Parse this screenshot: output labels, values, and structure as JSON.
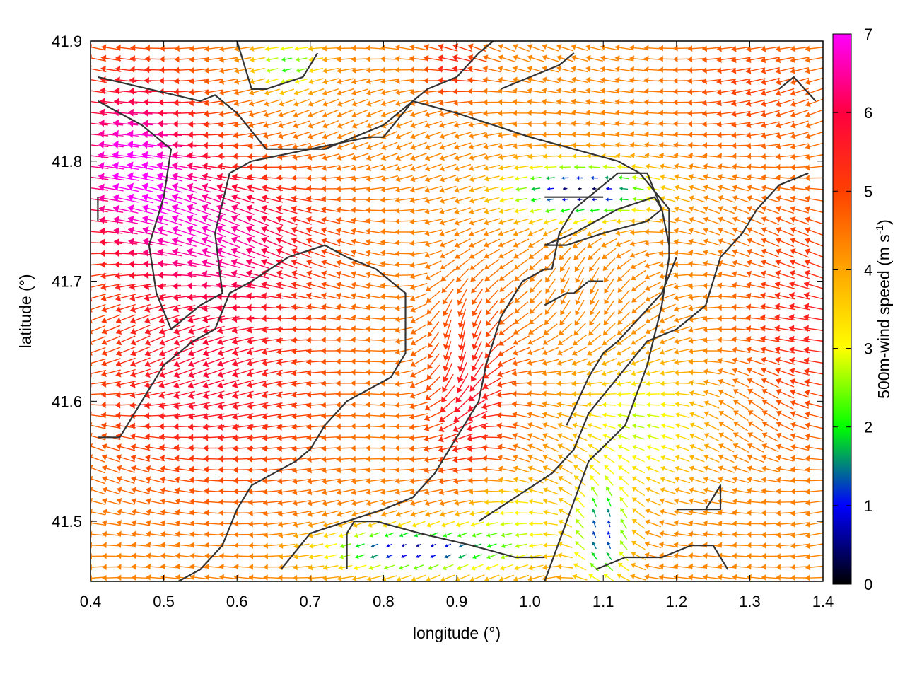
{
  "chart_data": {
    "type": "vector-field",
    "xlabel": "longitude (°)",
    "ylabel": "latitude (°)",
    "colorbar_label": "500m-wind speed (m s",
    "colorbar_label_sup": "-1",
    "colorbar_label_close": ")",
    "xlim": [
      0.4,
      1.4
    ],
    "ylim": [
      41.45,
      41.9
    ],
    "x_ticks": [
      {
        "v": 0.4,
        "label": "0.4"
      },
      {
        "v": 0.5,
        "label": "0.5"
      },
      {
        "v": 0.6,
        "label": "0.6"
      },
      {
        "v": 0.7,
        "label": "0.7"
      },
      {
        "v": 0.8,
        "label": "0.8"
      },
      {
        "v": 0.9,
        "label": "0.9"
      },
      {
        "v": 1.0,
        "label": "1.0"
      },
      {
        "v": 1.1,
        "label": "1.1"
      },
      {
        "v": 1.2,
        "label": "1.2"
      },
      {
        "v": 1.3,
        "label": "1.3"
      },
      {
        "v": 1.4,
        "label": "1.4"
      }
    ],
    "y_ticks": [
      {
        "v": 41.5,
        "label": "41.5"
      },
      {
        "v": 41.6,
        "label": "41.6"
      },
      {
        "v": 41.7,
        "label": "41.7"
      },
      {
        "v": 41.8,
        "label": "41.8"
      },
      {
        "v": 41.9,
        "label": "41.9"
      }
    ],
    "colorbar": {
      "range": [
        0,
        7
      ],
      "ticks": [
        {
          "v": 0,
          "label": "0"
        },
        {
          "v": 1,
          "label": "1"
        },
        {
          "v": 2,
          "label": "2"
        },
        {
          "v": 3,
          "label": "3"
        },
        {
          "v": 4,
          "label": "4"
        },
        {
          "v": 5,
          "label": "5"
        },
        {
          "v": 6,
          "label": "6"
        },
        {
          "v": 7,
          "label": "7"
        }
      ],
      "stops": [
        {
          "v": 0,
          "color": "#000000"
        },
        {
          "v": 1,
          "color": "#0000ff"
        },
        {
          "v": 2,
          "color": "#00ff00"
        },
        {
          "v": 3,
          "color": "#ffff00"
        },
        {
          "v": 4,
          "color": "#ffa500"
        },
        {
          "v": 5,
          "color": "#ff4000"
        },
        {
          "v": 6,
          "color": "#ff0040"
        },
        {
          "v": 7,
          "color": "#ff00ff"
        }
      ]
    },
    "contour_color": "#333333",
    "contours": [
      [
        [
          0.41,
          41.87
        ],
        [
          0.48,
          41.86
        ],
        [
          0.55,
          41.85
        ],
        [
          0.57,
          41.855
        ],
        [
          0.6,
          41.84
        ],
        [
          0.64,
          41.81
        ],
        [
          0.67,
          41.81
        ],
        [
          0.72,
          41.81
        ],
        [
          0.8,
          41.83
        ],
        [
          0.86,
          41.86
        ],
        [
          0.9,
          41.87
        ],
        [
          0.93,
          41.89
        ],
        [
          0.95,
          41.9
        ]
      ],
      [
        [
          0.41,
          41.85
        ],
        [
          0.44,
          41.84
        ],
        [
          0.47,
          41.83
        ],
        [
          0.51,
          41.81
        ],
        [
          0.5,
          41.77
        ],
        [
          0.48,
          41.73
        ],
        [
          0.49,
          41.69
        ],
        [
          0.51,
          41.66
        ],
        [
          0.55,
          41.68
        ],
        [
          0.58,
          41.69
        ],
        [
          0.57,
          41.74
        ],
        [
          0.59,
          41.79
        ],
        [
          0.62,
          41.8
        ],
        [
          0.7,
          41.81
        ],
        [
          0.78,
          41.82
        ],
        [
          0.8,
          41.82
        ],
        [
          0.84,
          41.85
        ],
        [
          0.9,
          41.84
        ],
        [
          0.95,
          41.83
        ],
        [
          1.0,
          41.82
        ],
        [
          1.06,
          41.81
        ],
        [
          1.12,
          41.8
        ],
        [
          1.15,
          41.79
        ],
        [
          1.19,
          41.76
        ],
        [
          1.19,
          41.72
        ],
        [
          1.18,
          41.68
        ],
        [
          1.16,
          41.63
        ],
        [
          1.13,
          41.58
        ],
        [
          1.08,
          41.55
        ],
        [
          1.05,
          41.5
        ],
        [
          1.02,
          41.45
        ]
      ],
      [
        [
          0.6,
          41.9
        ],
        [
          0.62,
          41.86
        ],
        [
          0.64,
          41.86
        ],
        [
          0.69,
          41.87
        ],
        [
          0.71,
          41.89
        ]
      ],
      [
        [
          0.41,
          41.57
        ],
        [
          0.44,
          41.57
        ],
        [
          0.47,
          41.6
        ],
        [
          0.5,
          41.63
        ],
        [
          0.54,
          41.65
        ],
        [
          0.57,
          41.66
        ],
        [
          0.59,
          41.69
        ],
        [
          0.62,
          41.7
        ],
        [
          0.67,
          41.72
        ],
        [
          0.72,
          41.73
        ],
        [
          0.75,
          41.72
        ],
        [
          0.79,
          41.71
        ],
        [
          0.83,
          41.69
        ],
        [
          0.83,
          41.64
        ],
        [
          0.81,
          41.62
        ],
        [
          0.78,
          41.61
        ],
        [
          0.75,
          41.6
        ],
        [
          0.72,
          41.58
        ],
        [
          0.7,
          41.56
        ],
        [
          0.68,
          41.55
        ],
        [
          0.65,
          41.54
        ],
        [
          0.62,
          41.53
        ],
        [
          0.6,
          41.51
        ],
        [
          0.58,
          41.48
        ],
        [
          0.55,
          41.46
        ],
        [
          0.52,
          41.45
        ]
      ],
      [
        [
          0.66,
          41.46
        ],
        [
          0.7,
          41.49
        ],
        [
          0.75,
          41.5
        ],
        [
          0.8,
          41.51
        ],
        [
          0.84,
          41.52
        ],
        [
          0.87,
          41.54
        ],
        [
          0.89,
          41.56
        ],
        [
          0.91,
          41.58
        ],
        [
          0.93,
          41.6
        ],
        [
          0.94,
          41.63
        ],
        [
          0.96,
          41.67
        ],
        [
          0.99,
          41.7
        ],
        [
          1.02,
          41.71
        ],
        [
          1.03,
          41.71
        ],
        [
          1.04,
          41.74
        ],
        [
          1.06,
          41.76
        ],
        [
          1.08,
          41.77
        ],
        [
          1.1,
          41.78
        ],
        [
          1.12,
          41.79
        ],
        [
          1.16,
          41.79
        ],
        [
          1.18,
          41.76
        ],
        [
          1.19,
          41.73
        ]
      ],
      [
        [
          1.02,
          41.73
        ],
        [
          1.06,
          41.74
        ],
        [
          1.12,
          41.76
        ],
        [
          1.17,
          41.77
        ],
        [
          1.18,
          41.76
        ],
        [
          1.16,
          41.75
        ],
        [
          1.1,
          41.74
        ],
        [
          1.05,
          41.73
        ],
        [
          1.02,
          41.73
        ]
      ],
      [
        [
          0.93,
          41.5
        ],
        [
          0.98,
          41.52
        ],
        [
          1.03,
          41.54
        ],
        [
          1.06,
          41.56
        ],
        [
          1.08,
          41.59
        ],
        [
          1.12,
          41.62
        ],
        [
          1.16,
          41.65
        ],
        [
          1.2,
          41.66
        ],
        [
          1.24,
          41.68
        ],
        [
          1.26,
          41.72
        ],
        [
          1.29,
          41.74
        ],
        [
          1.31,
          41.76
        ],
        [
          1.34,
          41.78
        ],
        [
          1.38,
          41.79
        ]
      ],
      [
        [
          1.05,
          41.58
        ],
        [
          1.08,
          41.62
        ],
        [
          1.1,
          41.64
        ],
        [
          1.12,
          41.65
        ],
        [
          1.15,
          41.67
        ],
        [
          1.18,
          41.69
        ],
        [
          1.2,
          41.72
        ]
      ],
      [
        [
          0.75,
          41.46
        ],
        [
          0.75,
          41.49
        ],
        [
          0.76,
          41.5
        ],
        [
          0.79,
          41.5
        ],
        [
          0.85,
          41.49
        ],
        [
          0.92,
          41.48
        ],
        [
          0.98,
          41.47
        ],
        [
          1.02,
          41.47
        ]
      ],
      [
        [
          1.09,
          41.46
        ],
        [
          1.13,
          41.47
        ],
        [
          1.18,
          41.47
        ],
        [
          1.22,
          41.48
        ],
        [
          1.25,
          41.48
        ],
        [
          1.27,
          41.46
        ]
      ],
      [
        [
          1.2,
          41.51
        ],
        [
          1.24,
          41.51
        ],
        [
          1.25,
          41.52
        ],
        [
          1.26,
          41.53
        ],
        [
          1.26,
          41.51
        ],
        [
          1.24,
          41.51
        ]
      ],
      [
        [
          1.02,
          41.68
        ],
        [
          1.05,
          41.69
        ],
        [
          1.06,
          41.69
        ],
        [
          1.08,
          41.7
        ],
        [
          1.1,
          41.7
        ]
      ],
      [
        [
          1.34,
          41.86
        ],
        [
          1.36,
          41.87
        ],
        [
          1.39,
          41.85
        ]
      ],
      [
        [
          1.02,
          41.77
        ],
        [
          1.08,
          41.77
        ],
        [
          1.1,
          41.77
        ]
      ],
      [
        [
          0.41,
          41.77
        ],
        [
          0.41,
          41.75
        ]
      ],
      [
        [
          0.96,
          41.86
        ],
        [
          1.0,
          41.87
        ],
        [
          1.04,
          41.88
        ],
        [
          1.06,
          41.89
        ]
      ]
    ]
  }
}
